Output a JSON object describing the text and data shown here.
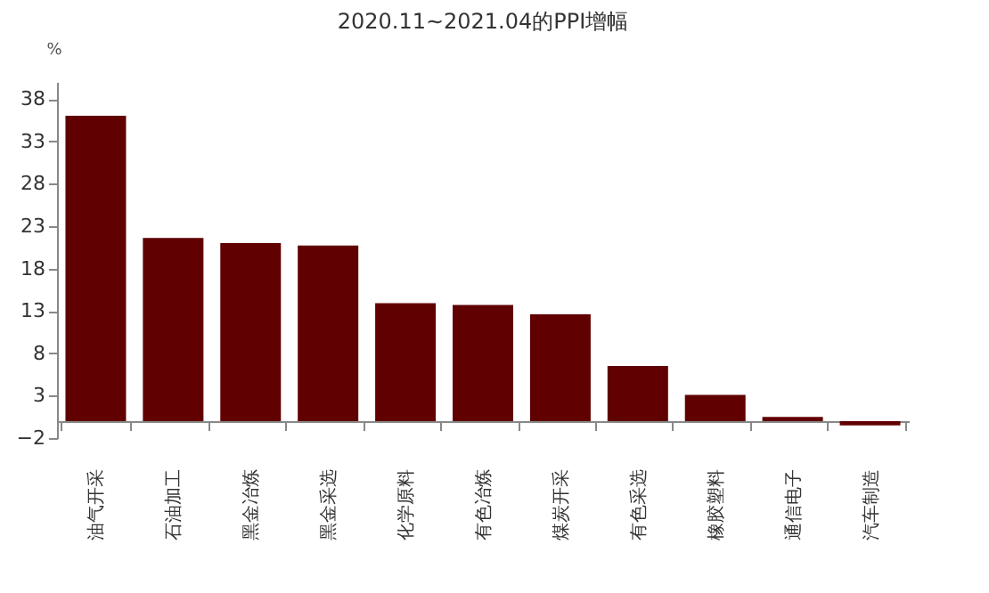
{
  "chart_data": {
    "type": "bar",
    "title": "2020.11~2021.04的PPI增幅",
    "ylabel": "%",
    "categories": [
      "油气开采",
      "石油加工",
      "黑金冶炼",
      "黑金采选",
      "化学原料",
      "有色冶炼",
      "煤炭开采",
      "有色采选",
      "橡胶塑料",
      "通信电子",
      "汽车制造"
    ],
    "values": [
      36.0,
      21.6,
      21.0,
      20.7,
      13.9,
      13.7,
      12.6,
      6.5,
      3.1,
      0.5,
      -0.5
    ],
    "color": "#600000",
    "ylim": [
      -2,
      40
    ],
    "yticks": [
      -2,
      3,
      8,
      13,
      18,
      23,
      28,
      33,
      38
    ],
    "grid": false
  }
}
